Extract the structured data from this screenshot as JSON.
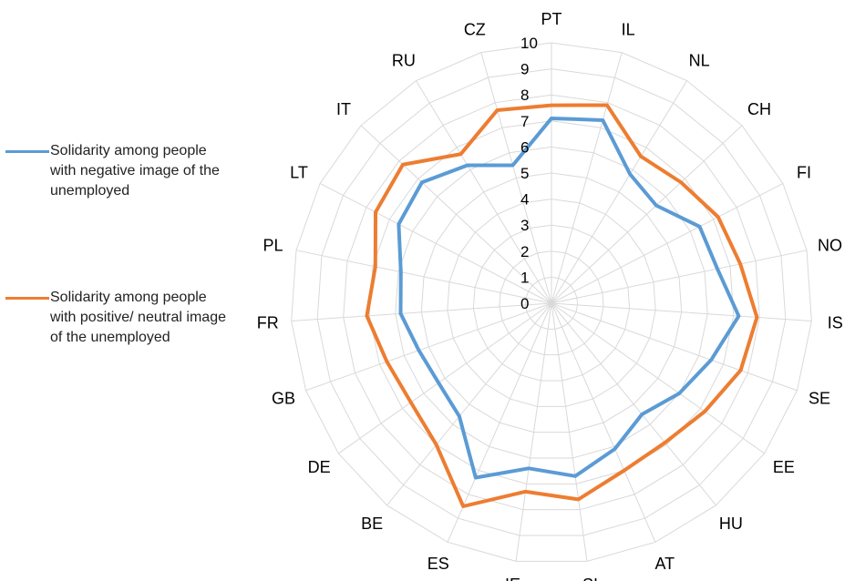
{
  "chart_data": {
    "type": "radar",
    "title": "",
    "categories": [
      "PT",
      "IL",
      "NL",
      "CH",
      "FI",
      "NO",
      "IS",
      "SE",
      "EE",
      "HU",
      "AT",
      "SI",
      "IE",
      "ES",
      "BE",
      "DE",
      "GB",
      "FR",
      "PL",
      "LT",
      "IT",
      "RU",
      "CZ"
    ],
    "rlim": [
      0,
      10
    ],
    "ticks": [
      "0",
      "1",
      "2",
      "3",
      "4",
      "5",
      "6",
      "7",
      "8",
      "9",
      "10"
    ],
    "grid": true,
    "legend_position": "left",
    "series": [
      {
        "name": "Solidarity among people with negative image of the unemployed",
        "color": "#5b9bd5",
        "values": [
          7.1,
          7.3,
          5.8,
          5.5,
          6.4,
          6.5,
          7.2,
          6.5,
          6.0,
          5.5,
          6.1,
          6.7,
          6.4,
          7.3,
          5.6,
          5.3,
          5.4,
          5.8,
          5.9,
          6.6,
          6.8,
          6.2,
          5.5
        ]
      },
      {
        "name": "Solidarity among people with positive/ neutral image of the unemployed",
        "color": "#ed7d31",
        "values": [
          7.6,
          7.9,
          6.6,
          6.8,
          7.2,
          7.4,
          7.9,
          7.7,
          7.2,
          6.9,
          7.0,
          7.6,
          7.3,
          8.5,
          7.0,
          6.6,
          6.7,
          7.1,
          6.9,
          7.6,
          7.8,
          6.7,
          7.7
        ]
      }
    ]
  }
}
